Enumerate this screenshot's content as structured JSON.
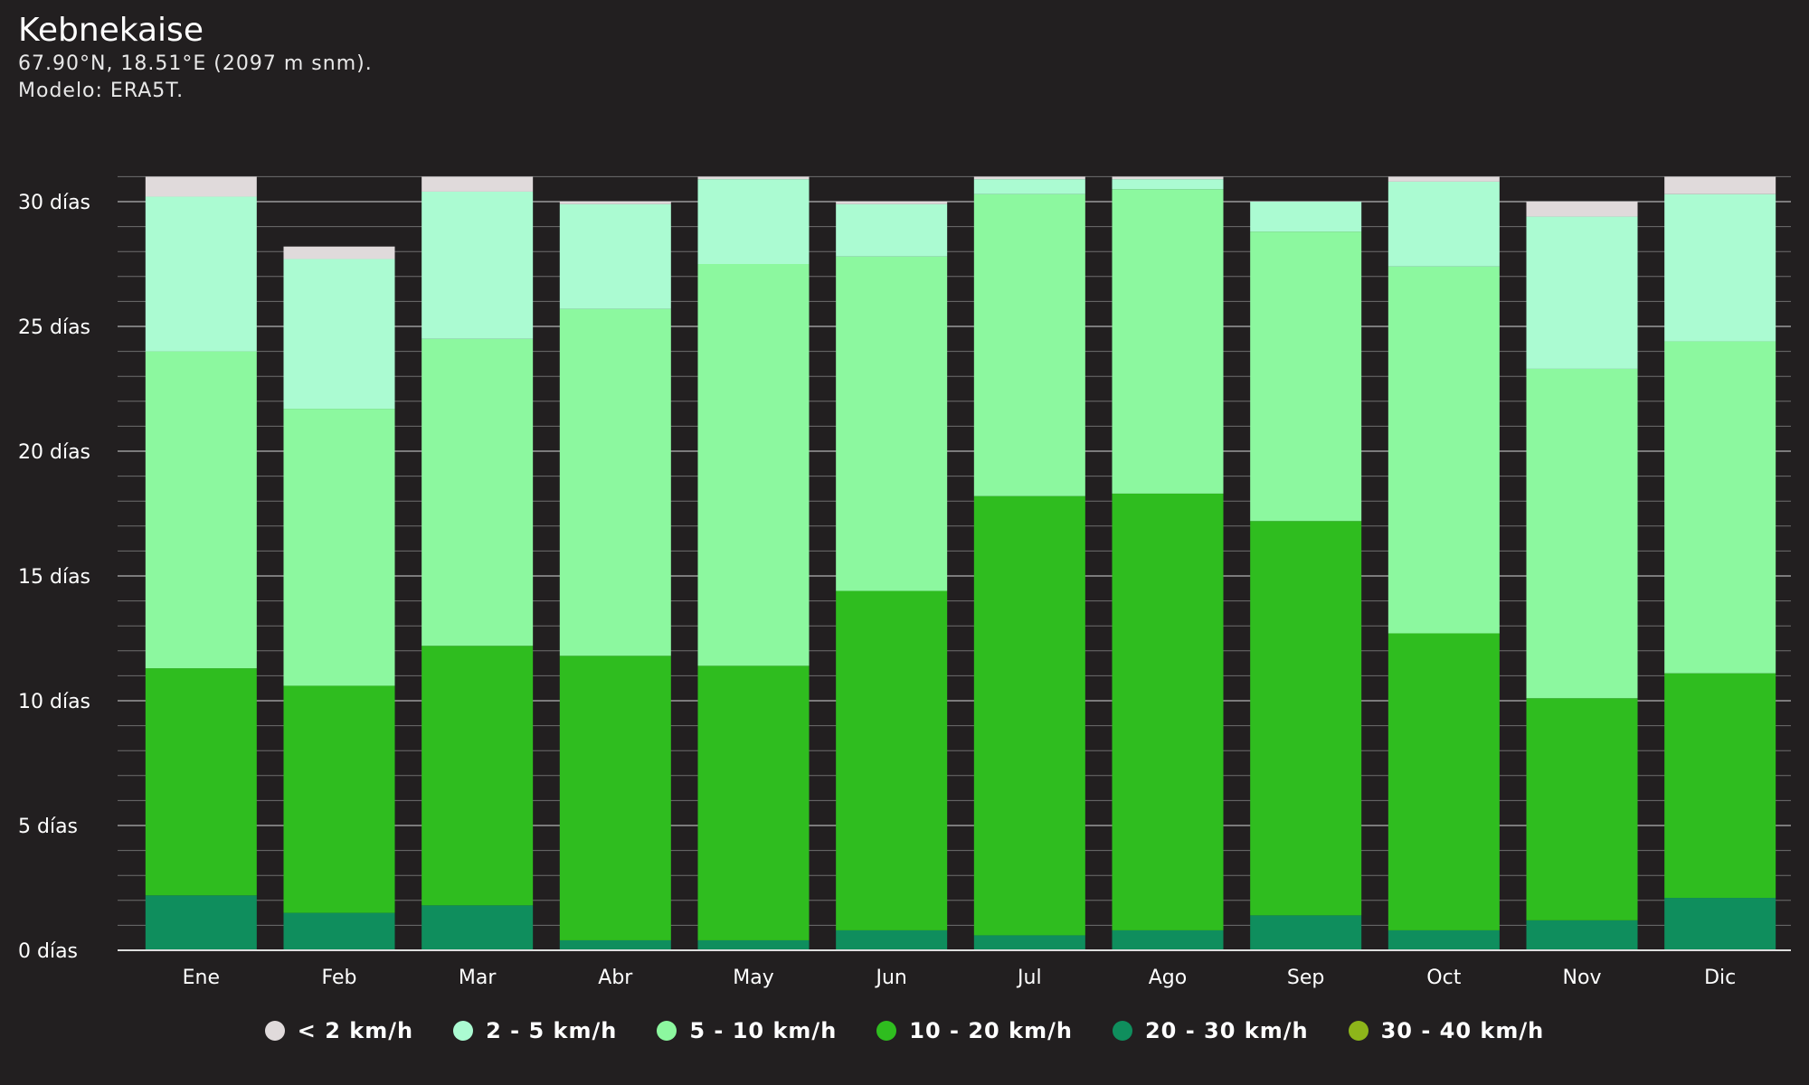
{
  "header": {
    "title": "Kebnekaise",
    "location": "67.90°N, 18.51°E (2097 m snm).",
    "model": "Modelo: ERA5T."
  },
  "chart_data": {
    "type": "bar",
    "stacked": true,
    "categories": [
      "Ene",
      "Feb",
      "Mar",
      "Abr",
      "May",
      "Jun",
      "Jul",
      "Ago",
      "Sep",
      "Oct",
      "Nov",
      "Dic"
    ],
    "y_ticks": [
      "0 días",
      "5 días",
      "10 días",
      "15 días",
      "20 días",
      "25 días",
      "30 días"
    ],
    "ylim": [
      0,
      31
    ],
    "grid": true,
    "legend_position": "bottom",
    "series": [
      {
        "name": "30 - 40 km/h",
        "color": "#8db51a",
        "values": [
          0,
          0,
          0,
          0,
          0,
          0,
          0,
          0,
          0,
          0,
          0,
          0
        ]
      },
      {
        "name": "20 - 30 km/h",
        "color": "#0f8e5d",
        "values": [
          2.2,
          1.5,
          1.8,
          0.4,
          0.4,
          0.8,
          0.6,
          0.8,
          1.4,
          0.8,
          1.2,
          2.1
        ]
      },
      {
        "name": "10 - 20 km/h",
        "color": "#2fbd1f",
        "values": [
          9.1,
          9.1,
          10.4,
          11.4,
          11.0,
          13.6,
          17.6,
          17.5,
          15.8,
          11.9,
          8.9,
          9.0
        ]
      },
      {
        "name": "5 - 10 km/h",
        "color": "#8cf89f",
        "values": [
          12.7,
          11.1,
          12.3,
          13.9,
          16.1,
          13.4,
          12.1,
          12.2,
          11.6,
          14.7,
          13.2,
          13.3
        ]
      },
      {
        "name": "2 - 5 km/h",
        "color": "#abfbd2",
        "values": [
          6.2,
          6.0,
          5.9,
          4.2,
          3.4,
          2.1,
          0.6,
          0.4,
          1.2,
          3.4,
          6.1,
          5.9
        ]
      },
      {
        "name": "< 2 km/h",
        "color": "#e0dadb",
        "values": [
          0.8,
          0.5,
          0.6,
          0.1,
          0.1,
          0.1,
          0.1,
          0.1,
          0.0,
          0.2,
          0.6,
          0.7
        ]
      }
    ],
    "legend_order": [
      "< 2 km/h",
      "2 - 5 km/h",
      "5 - 10 km/h",
      "10 - 20 km/h",
      "20 - 30 km/h",
      "30 - 40 km/h"
    ]
  }
}
